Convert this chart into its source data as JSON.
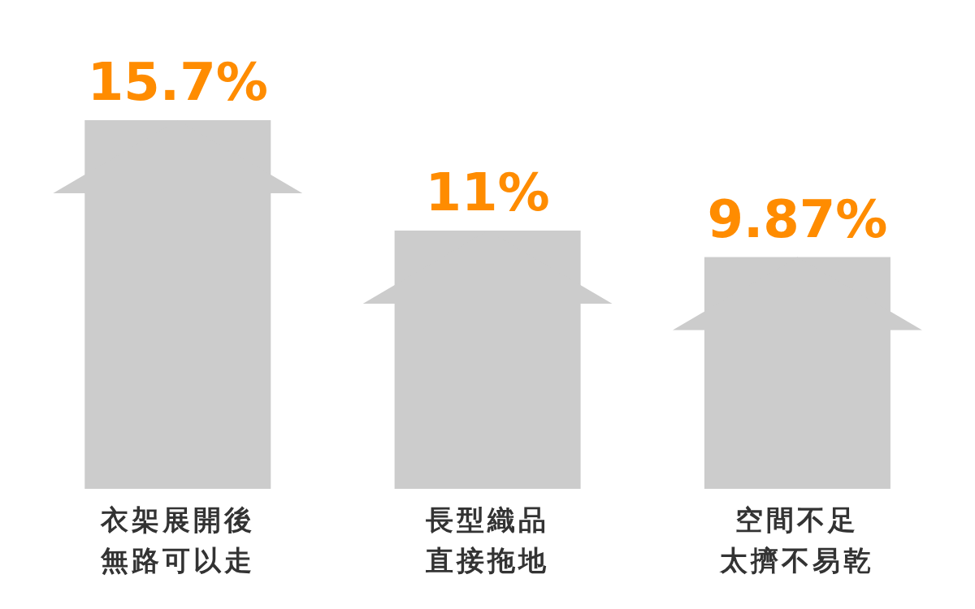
{
  "chart_data": {
    "type": "bar",
    "categories": [
      "衣架展開後無路可以走",
      "長型織品直接拖地",
      "空間不足太擠不易乾"
    ],
    "values": [
      15.7,
      11,
      9.87
    ],
    "value_labels": [
      "15.7%",
      "11%",
      "9.87%"
    ],
    "color": "#cccccc"
  }
}
